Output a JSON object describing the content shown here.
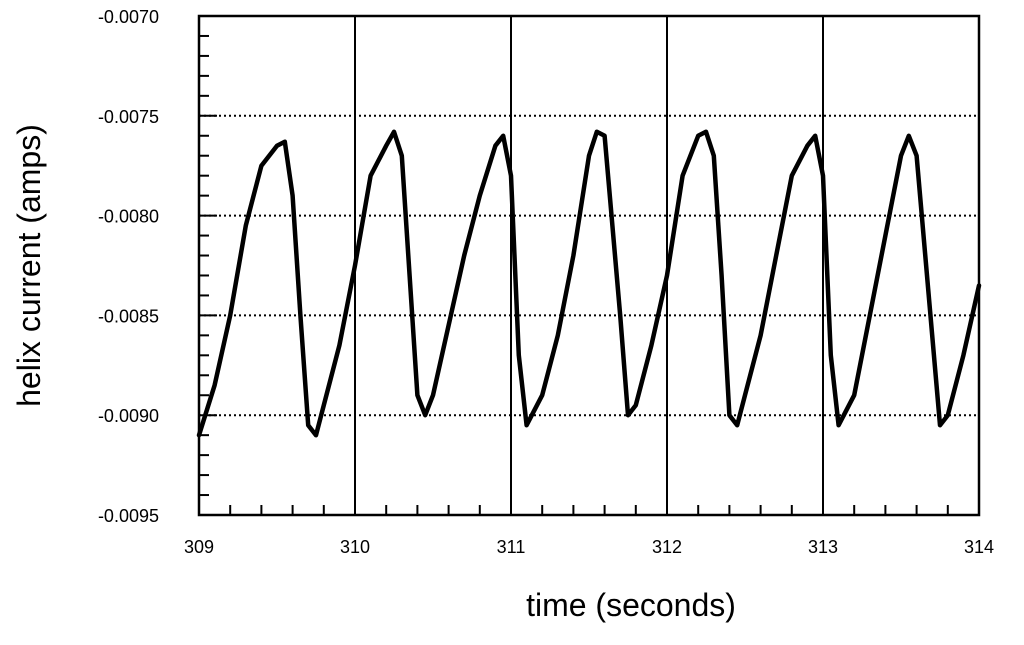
{
  "chart_data": {
    "type": "line",
    "title": "",
    "xlabel": "time (seconds)",
    "ylabel": "helix current (amps)",
    "xlim": [
      309,
      314
    ],
    "ylim": [
      -0.0095,
      -0.007
    ],
    "x_ticks": [
      309,
      310,
      311,
      312,
      313,
      314
    ],
    "x_tick_labels": [
      "309",
      "310",
      "311",
      "312",
      "313",
      "314"
    ],
    "y_ticks": [
      -0.0095,
      -0.009,
      -0.0085,
      -0.008,
      -0.0075,
      -0.007
    ],
    "y_tick_labels": [
      "-0.0095",
      "-0.0090",
      "-0.0085",
      "-0.0080",
      "-0.0075",
      "-0.0070"
    ],
    "grid": {
      "vertical_solid_at": [
        310,
        311,
        312,
        313
      ],
      "horizontal_dotted_at": [
        -0.009,
        -0.0085,
        -0.008,
        -0.0075
      ]
    },
    "legend": "none",
    "colors": {
      "line": "#000000",
      "grid": "#000000",
      "background": "#ffffff"
    },
    "series": [
      {
        "x": [
          309.0,
          309.1,
          309.2,
          309.3,
          309.35,
          309.4,
          309.5,
          309.55,
          309.6,
          309.65,
          309.7,
          309.75,
          309.8,
          309.9,
          310.0,
          310.1,
          310.2,
          310.25,
          310.3,
          310.35,
          310.4,
          310.45,
          310.5,
          310.6,
          310.7,
          310.8,
          310.9,
          310.95,
          311.0,
          311.05,
          311.1,
          311.2,
          311.3,
          311.4,
          311.5,
          311.55,
          311.6,
          311.7,
          311.75,
          311.8,
          311.9,
          312.0,
          312.1,
          312.2,
          312.25,
          312.3,
          312.35,
          312.4,
          312.45,
          312.5,
          312.6,
          312.7,
          312.8,
          312.9,
          312.95,
          313.0,
          313.05,
          313.1,
          313.2,
          313.3,
          313.4,
          313.5,
          313.55,
          313.6,
          313.7,
          313.75,
          313.8,
          313.9,
          314.0
        ],
        "y": [
          -0.0091,
          -0.00885,
          -0.0085,
          -0.00805,
          -0.0079,
          -0.00775,
          -0.00765,
          -0.00763,
          -0.0079,
          -0.0085,
          -0.00905,
          -0.0091,
          -0.00895,
          -0.00865,
          -0.00825,
          -0.0078,
          -0.00765,
          -0.00758,
          -0.0077,
          -0.0083,
          -0.0089,
          -0.009,
          -0.0089,
          -0.00855,
          -0.0082,
          -0.0079,
          -0.00765,
          -0.0076,
          -0.0078,
          -0.0087,
          -0.00905,
          -0.0089,
          -0.0086,
          -0.0082,
          -0.0077,
          -0.00758,
          -0.0076,
          -0.0085,
          -0.009,
          -0.00895,
          -0.00865,
          -0.0083,
          -0.0078,
          -0.0076,
          -0.00758,
          -0.0077,
          -0.0083,
          -0.009,
          -0.00905,
          -0.0089,
          -0.0086,
          -0.0082,
          -0.0078,
          -0.00765,
          -0.0076,
          -0.0078,
          -0.0087,
          -0.00905,
          -0.0089,
          -0.0085,
          -0.0081,
          -0.0077,
          -0.0076,
          -0.0077,
          -0.0086,
          -0.00905,
          -0.009,
          -0.0087,
          -0.00835
        ]
      }
    ]
  }
}
